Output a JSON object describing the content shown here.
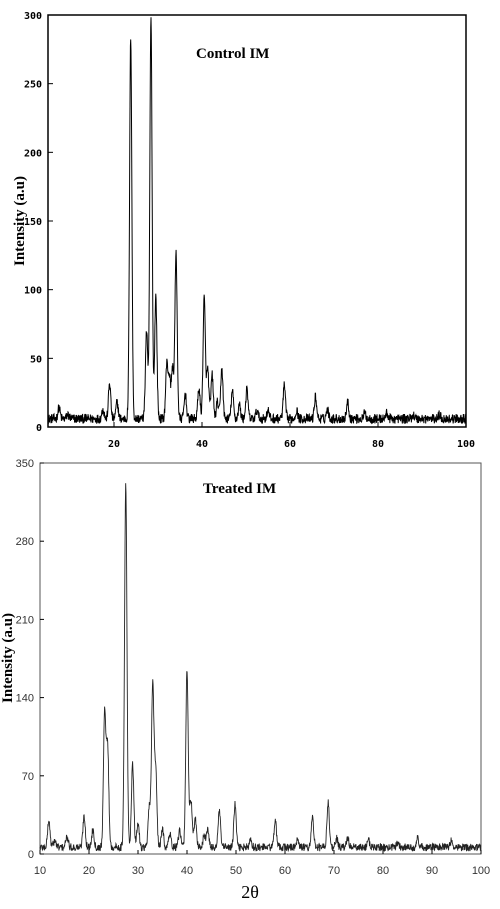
{
  "chart_data": [
    {
      "type": "line",
      "title": "Control IM",
      "xlabel": "",
      "ylabel": "Intensity (a.u)",
      "xlim": [
        5,
        100
      ],
      "ylim": [
        0,
        300
      ],
      "x_ticks": [
        20,
        40,
        60,
        80,
        100
      ],
      "y_ticks": [
        0,
        50,
        100,
        150,
        200,
        250,
        300
      ],
      "x_tick_labels": [
        "20",
        "40",
        "60",
        "80",
        "100"
      ],
      "y_tick_labels": [
        "0",
        "50",
        "100",
        "150",
        "200",
        "250",
        "300"
      ],
      "grid": false,
      "baseline": 6,
      "peaks": [
        {
          "x": 7.5,
          "y": 14
        },
        {
          "x": 9.5,
          "y": 9
        },
        {
          "x": 17.5,
          "y": 13
        },
        {
          "x": 19.0,
          "y": 32
        },
        {
          "x": 20.7,
          "y": 18
        },
        {
          "x": 23.8,
          "y": 285
        },
        {
          "x": 27.4,
          "y": 70
        },
        {
          "x": 28.4,
          "y": 298
        },
        {
          "x": 29.5,
          "y": 95
        },
        {
          "x": 32.0,
          "y": 45
        },
        {
          "x": 32.6,
          "y": 35
        },
        {
          "x": 33.3,
          "y": 42
        },
        {
          "x": 34.1,
          "y": 126
        },
        {
          "x": 36.2,
          "y": 24
        },
        {
          "x": 39.3,
          "y": 28
        },
        {
          "x": 40.5,
          "y": 94
        },
        {
          "x": 41.3,
          "y": 42
        },
        {
          "x": 42.3,
          "y": 38
        },
        {
          "x": 43.5,
          "y": 18
        },
        {
          "x": 44.5,
          "y": 43
        },
        {
          "x": 46.9,
          "y": 26
        },
        {
          "x": 48.5,
          "y": 16
        },
        {
          "x": 50.2,
          "y": 27
        },
        {
          "x": 52.5,
          "y": 12
        },
        {
          "x": 55.0,
          "y": 12
        },
        {
          "x": 58.7,
          "y": 30
        },
        {
          "x": 61.5,
          "y": 12
        },
        {
          "x": 65.8,
          "y": 22
        },
        {
          "x": 68.5,
          "y": 13
        },
        {
          "x": 73.1,
          "y": 18
        },
        {
          "x": 77.0,
          "y": 10
        },
        {
          "x": 82.0,
          "y": 10
        },
        {
          "x": 88.0,
          "y": 9
        },
        {
          "x": 94.0,
          "y": 9
        }
      ]
    },
    {
      "type": "line",
      "title": "Treated IM",
      "xlabel": "2θ",
      "ylabel": "Intensity (a.u)",
      "xlim": [
        10,
        100
      ],
      "ylim": [
        0,
        350
      ],
      "x_ticks": [
        10,
        20,
        30,
        40,
        50,
        60,
        70,
        80,
        90,
        100
      ],
      "y_ticks": [
        0,
        70,
        140,
        210,
        280,
        350
      ],
      "x_tick_labels": [
        "10",
        "20",
        "30",
        "40",
        "50",
        "60",
        "70",
        "80",
        "90",
        "100"
      ],
      "y_tick_labels": [
        "0",
        "70",
        "140",
        "210",
        "280",
        "350"
      ],
      "grid": false,
      "baseline": 6,
      "peaks": [
        {
          "x": 11.8,
          "y": 30
        },
        {
          "x": 13.0,
          "y": 12
        },
        {
          "x": 15.5,
          "y": 15
        },
        {
          "x": 19.0,
          "y": 34
        },
        {
          "x": 20.8,
          "y": 22
        },
        {
          "x": 23.2,
          "y": 127
        },
        {
          "x": 23.8,
          "y": 95
        },
        {
          "x": 27.5,
          "y": 330
        },
        {
          "x": 28.9,
          "y": 80
        },
        {
          "x": 30.0,
          "y": 28
        },
        {
          "x": 32.3,
          "y": 40
        },
        {
          "x": 33.0,
          "y": 152
        },
        {
          "x": 33.6,
          "y": 75
        },
        {
          "x": 35.0,
          "y": 22
        },
        {
          "x": 36.5,
          "y": 18
        },
        {
          "x": 38.5,
          "y": 20
        },
        {
          "x": 40.0,
          "y": 166
        },
        {
          "x": 40.8,
          "y": 48
        },
        {
          "x": 41.7,
          "y": 32
        },
        {
          "x": 43.5,
          "y": 16
        },
        {
          "x": 44.2,
          "y": 22
        },
        {
          "x": 46.6,
          "y": 38
        },
        {
          "x": 49.8,
          "y": 44
        },
        {
          "x": 53.0,
          "y": 12
        },
        {
          "x": 58.0,
          "y": 30
        },
        {
          "x": 62.5,
          "y": 12
        },
        {
          "x": 65.6,
          "y": 33
        },
        {
          "x": 68.8,
          "y": 46
        },
        {
          "x": 70.5,
          "y": 14
        },
        {
          "x": 72.8,
          "y": 14
        },
        {
          "x": 77.0,
          "y": 12
        },
        {
          "x": 83.0,
          "y": 11
        },
        {
          "x": 87.0,
          "y": 14
        },
        {
          "x": 94.0,
          "y": 12
        }
      ]
    }
  ]
}
